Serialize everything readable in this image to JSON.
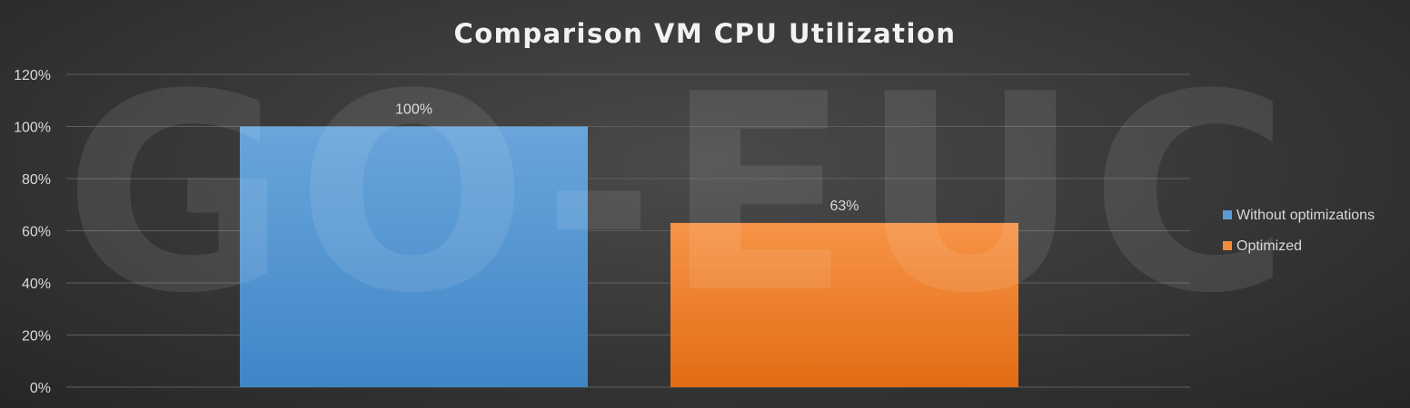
{
  "watermark": "GO-EUC",
  "chart_data": {
    "type": "bar",
    "title": "Comparison VM CPU Utilization",
    "xlabel": "",
    "ylabel": "",
    "ylim": [
      0,
      1.2
    ],
    "yticks": [
      {
        "value": 0,
        "label": "0%"
      },
      {
        "value": 0.2,
        "label": "20%"
      },
      {
        "value": 0.4,
        "label": "40%"
      },
      {
        "value": 0.6,
        "label": "60%"
      },
      {
        "value": 0.8,
        "label": "80%"
      },
      {
        "value": 1.0,
        "label": "100%"
      },
      {
        "value": 1.2,
        "label": "120%"
      }
    ],
    "grid": true,
    "legend_position": "right",
    "series": [
      {
        "name": "Without optimizations",
        "value": 1.0,
        "label": "100%",
        "color": "#5b9bd5",
        "color_dark": "#3d85c6"
      },
      {
        "name": "Optimized",
        "value": 0.63,
        "label": "63%",
        "color": "#f48b3a",
        "color_dark": "#e0701a"
      }
    ]
  }
}
